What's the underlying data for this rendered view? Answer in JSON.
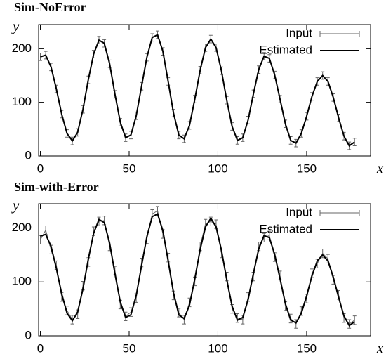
{
  "chart_data": [
    {
      "type": "line",
      "title": "Sim-NoError",
      "x_label": "x",
      "y_label": "y",
      "x": [
        0,
        3,
        6,
        9,
        12,
        15,
        18,
        21,
        24,
        27,
        30,
        33,
        36,
        39,
        42,
        45,
        48,
        51,
        54,
        57,
        60,
        63,
        66,
        69,
        72,
        75,
        78,
        81,
        84,
        87,
        90,
        93,
        96,
        99,
        102,
        105,
        108,
        111,
        114,
        117,
        120,
        123,
        126,
        129,
        132,
        135,
        138,
        141,
        144,
        147,
        150,
        153,
        156,
        159,
        162,
        165,
        168,
        171,
        174,
        177
      ],
      "series": [
        {
          "name": "Input",
          "color": "#666666",
          "error": 7,
          "values": [
            185,
            188,
            166,
            125,
            78,
            42,
            28,
            44,
            87,
            142,
            190,
            216,
            210,
            172,
            115,
            63,
            34,
            39,
            75,
            130,
            184,
            221,
            226,
            195,
            139,
            80,
            39,
            32,
            57,
            106,
            160,
            202,
            218,
            202,
            159,
            104,
            55,
            29,
            34,
            67,
            116,
            161,
            186,
            182,
            151,
            106,
            60,
            29,
            24,
            42,
            74,
            111,
            139,
            150,
            139,
            109,
            71,
            37,
            19,
            26
          ]
        },
        {
          "name": "Estimated",
          "color": "#000000",
          "values": [
            185,
            188,
            166,
            125,
            78,
            42,
            28,
            44,
            87,
            142,
            190,
            216,
            210,
            172,
            115,
            63,
            34,
            39,
            75,
            130,
            184,
            221,
            226,
            195,
            139,
            80,
            39,
            32,
            57,
            106,
            160,
            202,
            218,
            202,
            159,
            104,
            55,
            29,
            34,
            67,
            116,
            161,
            186,
            182,
            151,
            106,
            60,
            29,
            24,
            42,
            74,
            111,
            139,
            150,
            139,
            109,
            71,
            37,
            19,
            26
          ]
        }
      ],
      "xlim": [
        -1,
        186
      ],
      "ylim": [
        0,
        245
      ],
      "xticks": [
        0,
        50,
        100,
        150
      ],
      "yticks": [
        0,
        100,
        200
      ],
      "legend": "top-right"
    },
    {
      "type": "line",
      "title": "Sim-with-Error",
      "x_label": "x",
      "y_label": "y",
      "x": [
        0,
        3,
        6,
        9,
        12,
        15,
        18,
        21,
        24,
        27,
        30,
        33,
        36,
        39,
        42,
        45,
        48,
        51,
        54,
        57,
        60,
        63,
        66,
        69,
        72,
        75,
        78,
        81,
        84,
        87,
        90,
        93,
        96,
        99,
        102,
        105,
        108,
        111,
        114,
        117,
        120,
        123,
        126,
        129,
        132,
        135,
        138,
        141,
        144,
        147,
        150,
        153,
        156,
        159,
        162,
        165,
        168,
        171,
        174,
        177
      ],
      "series": [
        {
          "name": "Input",
          "color": "#666666",
          "error": 8,
          "values": [
            178,
            196,
            160,
            131,
            72,
            47,
            30,
            40,
            93,
            137,
            194,
            212,
            214,
            166,
            121,
            58,
            36,
            44,
            70,
            136,
            179,
            226,
            232,
            189,
            145,
            75,
            43,
            30,
            62,
            101,
            166,
            208,
            212,
            207,
            153,
            110,
            50,
            33,
            30,
            72,
            110,
            166,
            182,
            186,
            146,
            112,
            55,
            32,
            22,
            46,
            69,
            116,
            134,
            153,
            143,
            104,
            76,
            33,
            22,
            29
          ]
        },
        {
          "name": "Estimated",
          "color": "#000000",
          "values": [
            185,
            188,
            166,
            125,
            78,
            42,
            28,
            44,
            87,
            142,
            190,
            216,
            210,
            172,
            115,
            63,
            34,
            39,
            75,
            130,
            184,
            221,
            226,
            195,
            139,
            80,
            39,
            32,
            57,
            106,
            160,
            202,
            218,
            202,
            159,
            104,
            55,
            29,
            34,
            67,
            116,
            161,
            186,
            182,
            151,
            106,
            60,
            29,
            24,
            42,
            74,
            111,
            139,
            150,
            139,
            109,
            71,
            37,
            19,
            26
          ]
        }
      ],
      "xlim": [
        -1,
        186
      ],
      "ylim": [
        0,
        245
      ],
      "xticks": [
        0,
        50,
        100,
        150
      ],
      "yticks": [
        0,
        100,
        200
      ],
      "legend": "top-right"
    }
  ]
}
